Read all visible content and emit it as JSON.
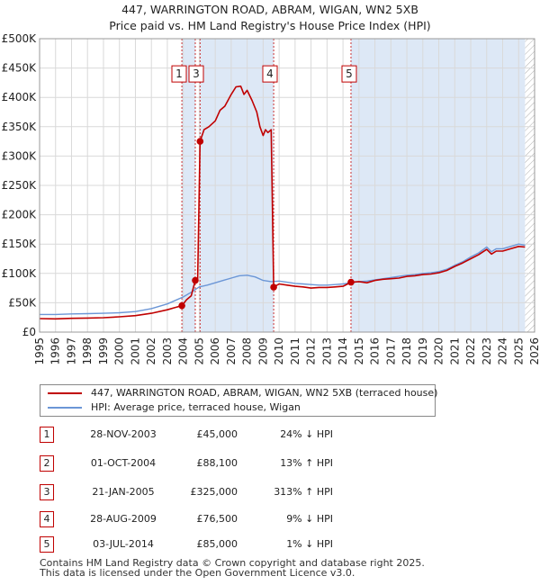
{
  "title": {
    "line1": "447, WARRINGTON ROAD, ABRAM, WIGAN, WN2 5XB",
    "line2": "Price paid vs. HM Land Registry's House Price Index (HPI)"
  },
  "colors": {
    "property": "#c00000",
    "hpi": "#6b96d6",
    "shade": "#dde8f6",
    "grid": "#d9d9d9",
    "hatch": "#b0b0b0"
  },
  "chart_data": {
    "type": "line",
    "title": "Price paid vs. HM Land Registry's House Price Index (HPI)",
    "xlabel": "",
    "ylabel": "",
    "xlim": [
      1995,
      2026
    ],
    "ylim": [
      0,
      500000
    ],
    "x_ticks": [
      "1995",
      "1996",
      "1997",
      "1998",
      "1999",
      "2000",
      "2001",
      "2002",
      "2003",
      "2004",
      "2005",
      "2006",
      "2007",
      "2008",
      "2009",
      "2010",
      "2011",
      "2012",
      "2013",
      "2014",
      "2015",
      "2016",
      "2017",
      "2018",
      "2019",
      "2020",
      "2021",
      "2022",
      "2023",
      "2024",
      "2025",
      "2026"
    ],
    "y_ticks": [
      {
        "value": 0,
        "label": "£0"
      },
      {
        "value": 50000,
        "label": "£50K"
      },
      {
        "value": 100000,
        "label": "£100K"
      },
      {
        "value": 150000,
        "label": "£150K"
      },
      {
        "value": 200000,
        "label": "£200K"
      },
      {
        "value": 250000,
        "label": "£250K"
      },
      {
        "value": 300000,
        "label": "£300K"
      },
      {
        "value": 350000,
        "label": "£350K"
      },
      {
        "value": 400000,
        "label": "£400K"
      },
      {
        "value": 450000,
        "label": "£450K"
      },
      {
        "value": 500000,
        "label": "£500K"
      }
    ],
    "shaded_ranges": [
      [
        2003.91,
        2004.75
      ],
      [
        2005.05,
        2009.66
      ],
      [
        2014.5,
        2025.4
      ]
    ],
    "hatched_from": 2025.4,
    "series": [
      {
        "name": "447, WARRINGTON ROAD, ABRAM, WIGAN, WN2 5XB (terraced house)",
        "color": "#c00000",
        "points": [
          [
            1995.0,
            23000
          ],
          [
            1996.0,
            22500
          ],
          [
            1997.0,
            23500
          ],
          [
            1998.0,
            24000
          ],
          [
            1999.0,
            24500
          ],
          [
            2000.0,
            26000
          ],
          [
            2001.0,
            28000
          ],
          [
            2002.0,
            32000
          ],
          [
            2003.0,
            38000
          ],
          [
            2003.5,
            42000
          ],
          [
            2003.91,
            45000
          ],
          [
            2004.2,
            55000
          ],
          [
            2004.5,
            62000
          ],
          [
            2004.75,
            88100
          ],
          [
            2004.9,
            88000
          ],
          [
            2005.05,
            325000
          ],
          [
            2005.3,
            345000
          ],
          [
            2005.6,
            350000
          ],
          [
            2006.0,
            360000
          ],
          [
            2006.3,
            378000
          ],
          [
            2006.6,
            385000
          ],
          [
            2007.0,
            405000
          ],
          [
            2007.3,
            418000
          ],
          [
            2007.6,
            419000
          ],
          [
            2007.8,
            405000
          ],
          [
            2008.0,
            412000
          ],
          [
            2008.3,
            395000
          ],
          [
            2008.6,
            375000
          ],
          [
            2008.8,
            350000
          ],
          [
            2009.0,
            335000
          ],
          [
            2009.15,
            345000
          ],
          [
            2009.3,
            340000
          ],
          [
            2009.5,
            345000
          ],
          [
            2009.66,
            76500
          ],
          [
            2010.0,
            82000
          ],
          [
            2010.5,
            80000
          ],
          [
            2011.0,
            78000
          ],
          [
            2011.5,
            77000
          ],
          [
            2012.0,
            75000
          ],
          [
            2012.5,
            76000
          ],
          [
            2013.0,
            76000
          ],
          [
            2013.5,
            77000
          ],
          [
            2014.0,
            78000
          ],
          [
            2014.5,
            85000
          ],
          [
            2015.0,
            86000
          ],
          [
            2015.5,
            84000
          ],
          [
            2016.0,
            88000
          ],
          [
            2016.5,
            90000
          ],
          [
            2017.0,
            91000
          ],
          [
            2017.5,
            92000
          ],
          [
            2018.0,
            95000
          ],
          [
            2018.5,
            96000
          ],
          [
            2019.0,
            98000
          ],
          [
            2019.5,
            99000
          ],
          [
            2020.0,
            101000
          ],
          [
            2020.5,
            105000
          ],
          [
            2021.0,
            112000
          ],
          [
            2021.5,
            118000
          ],
          [
            2022.0,
            125000
          ],
          [
            2022.5,
            132000
          ],
          [
            2023.0,
            141000
          ],
          [
            2023.3,
            133000
          ],
          [
            2023.6,
            138000
          ],
          [
            2024.0,
            138000
          ],
          [
            2024.5,
            142000
          ],
          [
            2025.0,
            146000
          ],
          [
            2025.4,
            145000
          ]
        ]
      },
      {
        "name": "HPI: Average price, terraced house, Wigan",
        "color": "#6b96d6",
        "points": [
          [
            1995.0,
            30000
          ],
          [
            1996.0,
            30000
          ],
          [
            1997.0,
            31000
          ],
          [
            1998.0,
            31500
          ],
          [
            1999.0,
            32000
          ],
          [
            2000.0,
            33000
          ],
          [
            2001.0,
            35000
          ],
          [
            2002.0,
            40000
          ],
          [
            2003.0,
            48000
          ],
          [
            2003.5,
            54000
          ],
          [
            2004.0,
            60000
          ],
          [
            2004.5,
            68000
          ],
          [
            2005.0,
            77000
          ],
          [
            2005.5,
            80000
          ],
          [
            2006.0,
            84000
          ],
          [
            2006.5,
            88000
          ],
          [
            2007.0,
            92000
          ],
          [
            2007.5,
            96000
          ],
          [
            2008.0,
            97000
          ],
          [
            2008.5,
            94000
          ],
          [
            2009.0,
            88000
          ],
          [
            2009.5,
            86000
          ],
          [
            2010.0,
            87000
          ],
          [
            2010.5,
            85000
          ],
          [
            2011.0,
            83000
          ],
          [
            2011.5,
            82000
          ],
          [
            2012.0,
            81000
          ],
          [
            2012.5,
            80000
          ],
          [
            2013.0,
            80000
          ],
          [
            2013.5,
            81000
          ],
          [
            2014.0,
            82000
          ],
          [
            2014.5,
            84000
          ],
          [
            2015.0,
            86000
          ],
          [
            2015.5,
            87000
          ],
          [
            2016.0,
            89000
          ],
          [
            2016.5,
            91000
          ],
          [
            2017.0,
            93000
          ],
          [
            2017.5,
            95000
          ],
          [
            2018.0,
            97000
          ],
          [
            2018.5,
            98000
          ],
          [
            2019.0,
            100000
          ],
          [
            2019.5,
            101000
          ],
          [
            2020.0,
            103000
          ],
          [
            2020.5,
            107000
          ],
          [
            2021.0,
            114000
          ],
          [
            2021.5,
            120000
          ],
          [
            2022.0,
            128000
          ],
          [
            2022.5,
            135000
          ],
          [
            2023.0,
            145000
          ],
          [
            2023.3,
            137000
          ],
          [
            2023.6,
            142000
          ],
          [
            2024.0,
            142000
          ],
          [
            2024.5,
            146000
          ],
          [
            2025.0,
            150000
          ],
          [
            2025.4,
            148000
          ]
        ]
      }
    ],
    "sales": [
      {
        "n": "1",
        "x": 2003.91,
        "y": 45000,
        "box_y": 440000
      },
      {
        "n": "2",
        "x": 2004.75,
        "y": 88100,
        "box_y": 440000
      },
      {
        "n": "3",
        "x": 2005.05,
        "y": 325000,
        "box_y": 440000
      },
      {
        "n": "4",
        "x": 2009.66,
        "y": 76500,
        "box_y": 440000
      },
      {
        "n": "5",
        "x": 2014.5,
        "y": 85000,
        "box_y": 440000
      }
    ]
  },
  "legend": {
    "property_label": "447, WARRINGTON ROAD, ABRAM, WIGAN, WN2 5XB (terraced house)",
    "hpi_label": "HPI: Average price, terraced house, Wigan"
  },
  "sales_table": [
    {
      "n": "1",
      "date": "28-NOV-2003",
      "price": "£45,000",
      "hpi": "24% ↓ HPI"
    },
    {
      "n": "2",
      "date": "01-OCT-2004",
      "price": "£88,100",
      "hpi": "13% ↑ HPI"
    },
    {
      "n": "3",
      "date": "21-JAN-2005",
      "price": "£325,000",
      "hpi": "313% ↑ HPI"
    },
    {
      "n": "4",
      "date": "28-AUG-2009",
      "price": "£76,500",
      "hpi": "9% ↓ HPI"
    },
    {
      "n": "5",
      "date": "03-JUL-2014",
      "price": "£85,000",
      "hpi": "1% ↓ HPI"
    }
  ],
  "footer": {
    "line1": "Contains HM Land Registry data © Crown copyright and database right 2025.",
    "line2": "This data is licensed under the Open Government Licence v3.0."
  }
}
